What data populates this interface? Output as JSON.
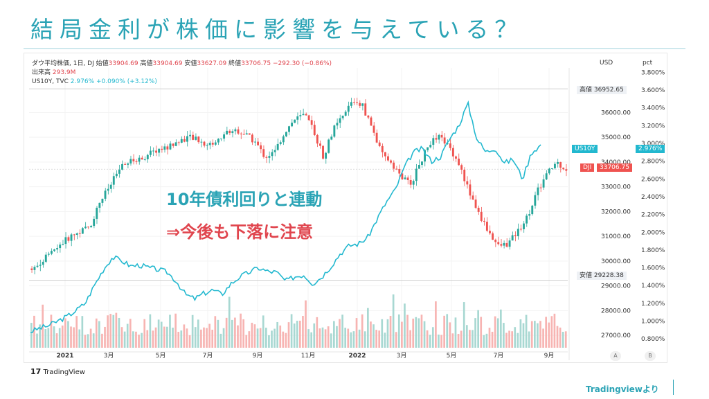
{
  "slide": {
    "title": "結局金利が株価に影響を与えている？",
    "annotation_line1": "10年債利回りと連動",
    "annotation_line2": "⇒今後も下落に注意",
    "source": "Tradingviewより"
  },
  "legend": {
    "dji_label": "ダウ平均株価, 1日, DJ",
    "open_label": "始値",
    "open": "33904.69",
    "high_label": "高値",
    "high": "33904.69",
    "low_label": "安値",
    "low": "33627.09",
    "close_label": "終値",
    "close": "33706.75",
    "change": "−292.30 (−0.86%)",
    "volume_label": "出来高",
    "volume": "293.9M",
    "us10y_label": "US10Y, TVC",
    "us10y_value": "2.976%",
    "us10y_change": "+0.090% (+3.12%)"
  },
  "tags": {
    "usd": "USD",
    "pct": "pct",
    "high_label": "高値",
    "high_value": "36952.65",
    "low_label": "安値",
    "low_value": "29228.38",
    "us10y_name": "US10Y",
    "us10y_value": "2.976%",
    "dji_name": "DJI",
    "dji_value": "33706.75",
    "btn_a": "A",
    "btn_b": "B",
    "tv_logo": "TradingView"
  },
  "colors": {
    "up": "#26a69a",
    "down": "#ef5350",
    "us10y": "#22b8cf",
    "accent": "#2aa3b5",
    "red_accent": "#e0454e"
  },
  "chart_data": {
    "type": "line",
    "subtype": "candlestick-with-overlay",
    "x_range": [
      "2020-11",
      "2022-08"
    ],
    "x_ticks": [
      "2021",
      "3月",
      "5月",
      "7月",
      "9月",
      "11月",
      "2022",
      "3月",
      "5月",
      "7月",
      "9月"
    ],
    "left_axis": {
      "ticks": [
        "36000.00",
        "35000.00",
        "34000.00",
        "33000.00",
        "32000.00",
        "31000.00",
        "30000.00",
        "29000.00",
        "28000.00",
        "27000.00"
      ],
      "range": [
        26500,
        37800
      ]
    },
    "right_axis": {
      "ticks": [
        "3.800%",
        "3.600%",
        "3.400%",
        "3.200%",
        "3.000%",
        "2.800%",
        "2.600%",
        "2.400%",
        "2.200%",
        "2.000%",
        "1.800%",
        "1.600%",
        "1.400%",
        "1.200%",
        "1.000%",
        "0.800%"
      ],
      "range": [
        0.7,
        3.85
      ]
    },
    "series": [
      {
        "name": "DJI",
        "values": [
          29700,
          30000,
          30300,
          30700,
          31000,
          31200,
          31400,
          32400,
          33000,
          33700,
          34000,
          34100,
          34300,
          34500,
          34600,
          34800,
          35000,
          34900,
          34700,
          34800,
          35200,
          35300,
          35100,
          34800,
          34200,
          34400,
          35200,
          35700,
          35900,
          35300,
          34200,
          35300,
          35800,
          36500,
          36300,
          35400,
          34300,
          34000,
          33400,
          33100,
          34000,
          34800,
          35000,
          34600,
          33900,
          32800,
          31900,
          31200,
          30600,
          30700,
          31200,
          31800,
          32800,
          33500,
          34000,
          33700
        ]
      },
      {
        "name": "US10Y",
        "values": [
          0.88,
          0.92,
          0.95,
          1.0,
          1.05,
          1.12,
          1.2,
          1.4,
          1.58,
          1.72,
          1.68,
          1.62,
          1.63,
          1.6,
          1.58,
          1.55,
          1.45,
          1.3,
          1.25,
          1.31,
          1.35,
          1.3,
          1.42,
          1.5,
          1.55,
          1.6,
          1.56,
          1.55,
          1.45,
          1.5,
          1.52,
          1.42,
          1.5,
          1.62,
          1.76,
          1.85,
          1.87,
          1.94,
          2.14,
          2.33,
          2.47,
          2.72,
          2.9,
          2.94,
          2.8,
          2.85,
          3.05,
          3.2,
          3.45,
          3.05,
          2.9,
          2.95,
          2.78,
          2.82,
          2.6,
          2.9,
          2.98
        ]
      }
    ]
  }
}
